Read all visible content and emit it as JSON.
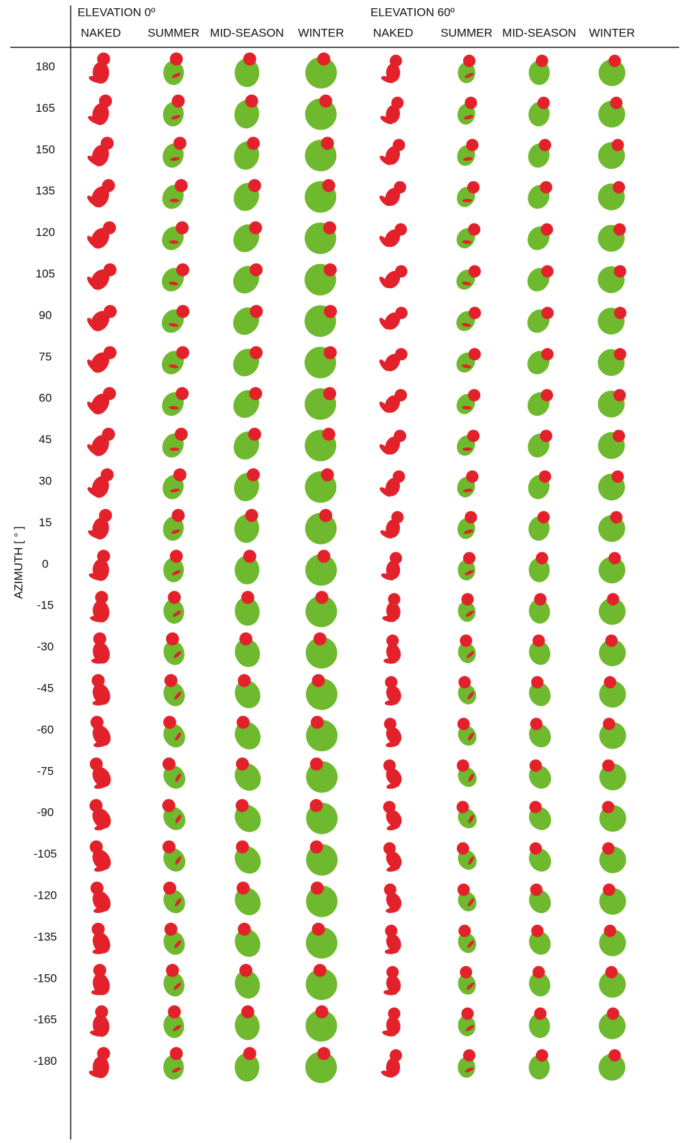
{
  "groups": [
    {
      "title": "ELEVATION 0º",
      "columns": [
        "NAKED",
        "SUMMER",
        "MID-SEASON",
        "WINTER"
      ]
    },
    {
      "title": "ELEVATION 60º",
      "columns": [
        "NAKED",
        "SUMMER",
        "MID-SEASON",
        "WINTER"
      ]
    }
  ],
  "axis_label": "AZIMUTH [ ° ]",
  "rows": [
    "180",
    "165",
    "150",
    "135",
    "120",
    "105",
    "90",
    "75",
    "60",
    "45",
    "30",
    "15",
    "0",
    "-15",
    "-30",
    "-45",
    "-60",
    "-75",
    "-90",
    "-105",
    "-120",
    "-135",
    "-150",
    "-165",
    "-180"
  ]
}
